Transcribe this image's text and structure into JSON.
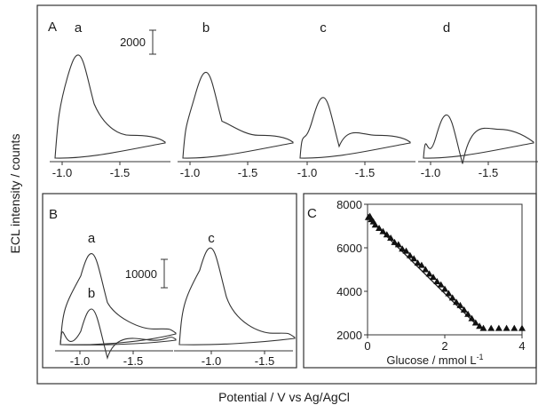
{
  "axis_labels": {
    "y": "ECL intensity / counts",
    "x": "Potential / V vs Ag/AgCl"
  },
  "chart_data": [
    {
      "panel": "A",
      "type": "line",
      "scale_bar": "2000",
      "x_ticks": [
        "-1.0",
        "-1.5"
      ],
      "series": [
        {
          "name": "a",
          "peak": 8600,
          "shoulder": 1900
        },
        {
          "name": "b",
          "peak": 7150,
          "shoulder": 1900
        },
        {
          "name": "c",
          "peak": 5050,
          "shoulder": 1900
        },
        {
          "name": "d",
          "peak": 3600,
          "shoulder": 2400
        }
      ]
    },
    {
      "panel": "B",
      "type": "line",
      "scale_bar": "10000",
      "x_ticks": [
        "-1.0",
        "-1.5"
      ],
      "series": [
        {
          "name": "a",
          "peak": 32000,
          "shoulder": 5500
        },
        {
          "name": "b",
          "peak": 12500,
          "shoulder": 1500
        },
        {
          "name": "c",
          "peak": 34000,
          "shoulder": 4000
        }
      ]
    },
    {
      "panel": "C",
      "type": "scatter",
      "xlabel": "Glucose / mmol L",
      "xlabel_sup": "-1",
      "xlim": [
        0,
        4
      ],
      "ylim": [
        2000,
        8000
      ],
      "x_ticks": [
        "0",
        "2",
        "4"
      ],
      "y_ticks": [
        "2000",
        "4000",
        "6000",
        "8000"
      ],
      "x": [
        0.02,
        0.06,
        0.1,
        0.15,
        0.2,
        0.3,
        0.4,
        0.5,
        0.6,
        0.7,
        0.8,
        0.9,
        1.0,
        1.1,
        1.2,
        1.3,
        1.4,
        1.5,
        1.6,
        1.7,
        1.8,
        1.9,
        2.0,
        2.1,
        2.2,
        2.3,
        2.4,
        2.5,
        2.6,
        2.7,
        2.8,
        2.9,
        3.0,
        3.2,
        3.4,
        3.6,
        3.8,
        4.0
      ],
      "y": [
        7400,
        7450,
        7300,
        7200,
        7050,
        6900,
        6750,
        6600,
        6450,
        6250,
        6150,
        5950,
        5850,
        5650,
        5500,
        5300,
        5200,
        5000,
        4800,
        4650,
        4450,
        4300,
        4100,
        3900,
        3700,
        3500,
        3350,
        3150,
        2950,
        2750,
        2550,
        2400,
        2300,
        2300,
        2300,
        2300,
        2300,
        2300
      ],
      "fit": {
        "x": [
          0,
          2.8
        ],
        "y": [
          7400,
          2500
        ]
      }
    }
  ]
}
